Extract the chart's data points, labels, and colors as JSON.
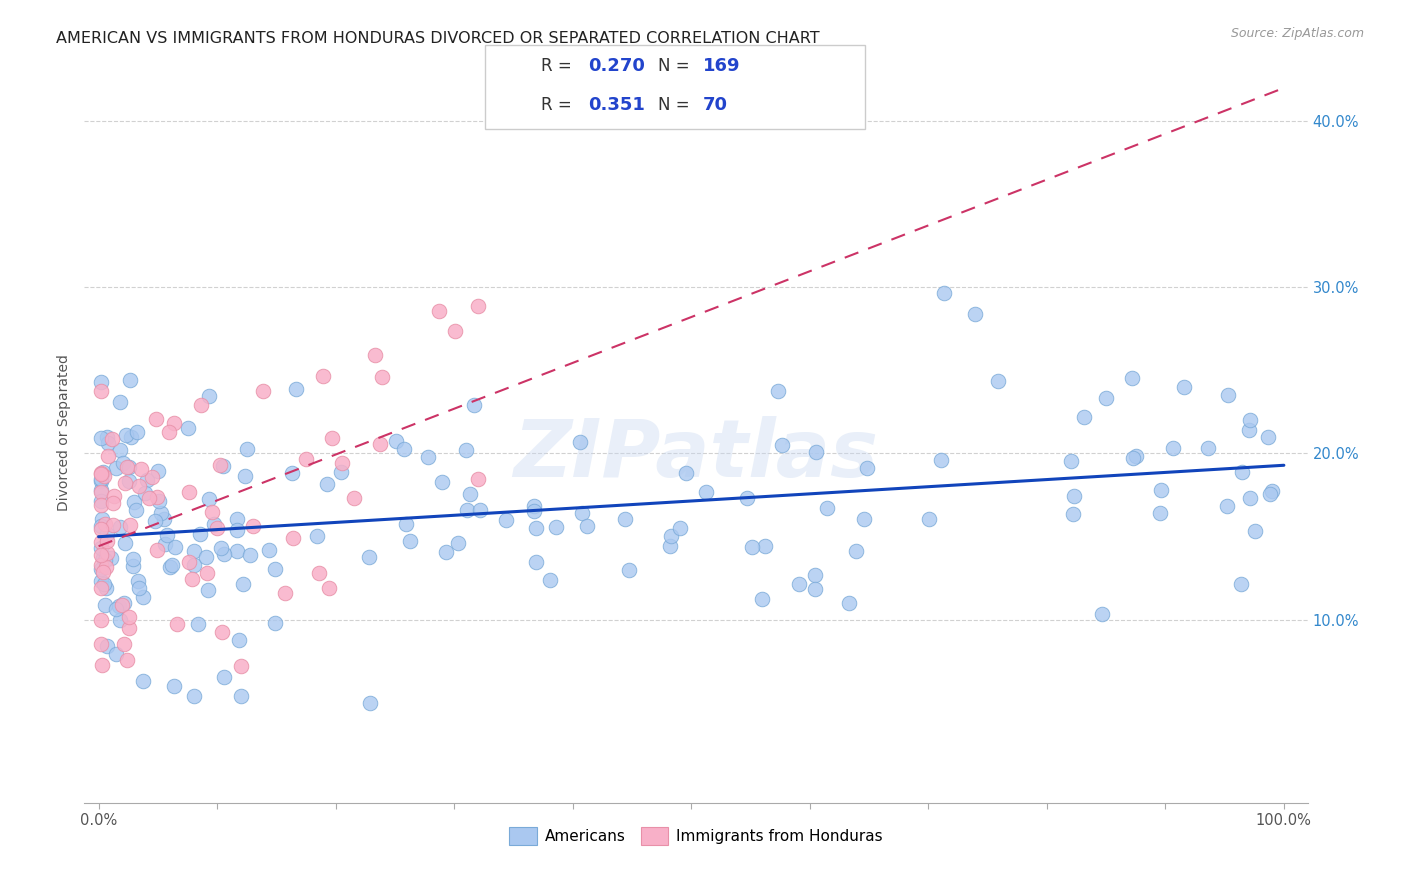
{
  "title": "AMERICAN VS IMMIGRANTS FROM HONDURAS DIVORCED OR SEPARATED CORRELATION CHART",
  "source": "Source: ZipAtlas.com",
  "ylabel": "Divorced or Separated",
  "watermark": "ZIPatlas",
  "legend_r_am": "0.270",
  "legend_n_am": "169",
  "legend_r_ho": "0.351",
  "legend_n_ho": "70",
  "american_scatter_color": "#aac8f0",
  "american_scatter_edge": "#7aaad8",
  "honduras_scatter_color": "#f8b0c8",
  "honduras_scatter_edge": "#e890a8",
  "american_line_color": "#1144bb",
  "honduras_line_color": "#cc3366",
  "background_color": "#ffffff",
  "grid_color": "#cccccc",
  "title_fontsize": 11.5,
  "label_fontsize": 10,
  "tick_fontsize": 10.5,
  "legend_text_color": "#2244cc",
  "legend_label_color": "#333333"
}
